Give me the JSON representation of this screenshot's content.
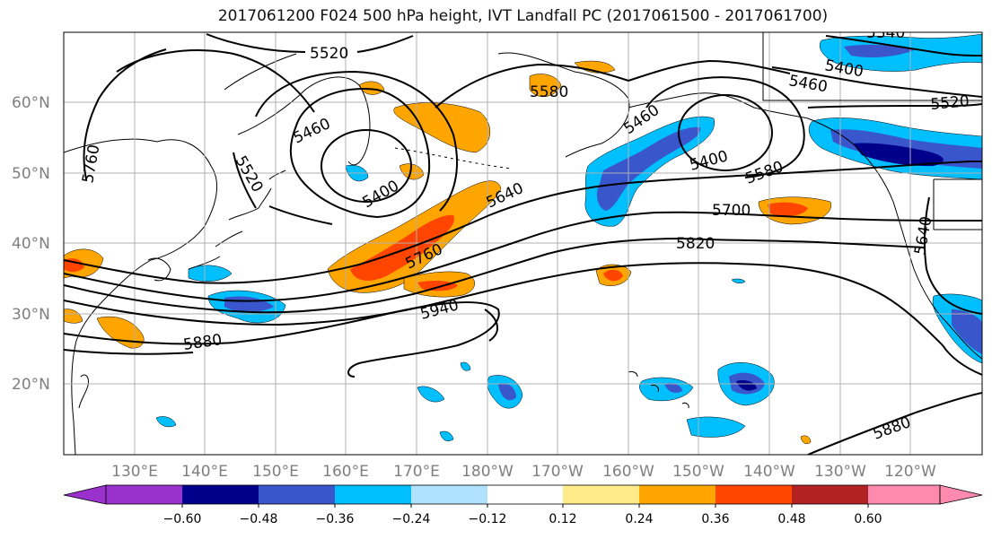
{
  "title": "2017061200 F024 500 hPa height, IVT Landfall PC (2017061500 - 2017061700)",
  "lat_labels": [
    "20°N",
    "30°N",
    "40°N",
    "50°N",
    "60°N"
  ],
  "lon_labels": [
    "130°E",
    "140°E",
    "150°E",
    "160°E",
    "170°E",
    "180°W",
    "170°W",
    "160°W",
    "150°W",
    "140°W",
    "130°W",
    "120°W"
  ],
  "contour_labels": [
    "5520",
    "5460",
    "5520",
    "5400",
    "5760",
    "5640",
    "5760",
    "5940",
    "5880",
    "5580",
    "5460",
    "5400",
    "5580",
    "5700",
    "5820",
    "5400",
    "5460",
    "5520",
    "5640",
    "5880",
    "5340"
  ],
  "colorbar": {
    "ticks": [
      "−0.60",
      "−0.48",
      "−0.36",
      "−0.24",
      "−0.12",
      "0.12",
      "0.24",
      "0.36",
      "0.48",
      "0.60"
    ],
    "colors": [
      "#9932cc",
      "#00008b",
      "#3a56cc",
      "#00bfff",
      "#b0e2ff",
      "#ffffff",
      "#ffeb8a",
      "#ffa500",
      "#ff4500",
      "#b22222",
      "#ff8ab0"
    ]
  },
  "colors": {
    "contour": "#000000",
    "grid": "#b0b0b0",
    "coast": "#000000"
  }
}
